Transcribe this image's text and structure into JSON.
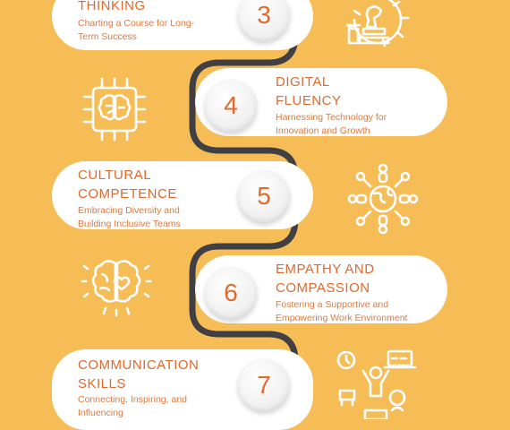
{
  "items": [
    {
      "number": "3",
      "title": "THINKING",
      "desc": "Charting a Course for Long-\nTerm Success",
      "icon": "strategy-gear-chess-icon"
    },
    {
      "number": "4",
      "title": "DIGITAL\nFLUENCY",
      "desc": "Harnessing Technology for\nInnovation and Growth",
      "icon": "brain-chip-icon"
    },
    {
      "number": "5",
      "title": "CULTURAL\nCOMPETENCE",
      "desc": "Embracing Diversity and\nBuilding Inclusive Teams",
      "icon": "globe-people-icon"
    },
    {
      "number": "6",
      "title": "EMPATHY AND\nCOMPASSION",
      "desc": "Fostering a Supportive and\nEmpowering Work Environment",
      "icon": "brain-heart-icon"
    },
    {
      "number": "7",
      "title": "COMMUNICATION\nSKILLS",
      "desc": "Connecting, Inspiring, and\nInfluencing",
      "icon": "communication-person-icon"
    }
  ],
  "colors": {
    "background": "#f6bd57",
    "accent": "#e0692c",
    "path": "#3f3f44"
  }
}
